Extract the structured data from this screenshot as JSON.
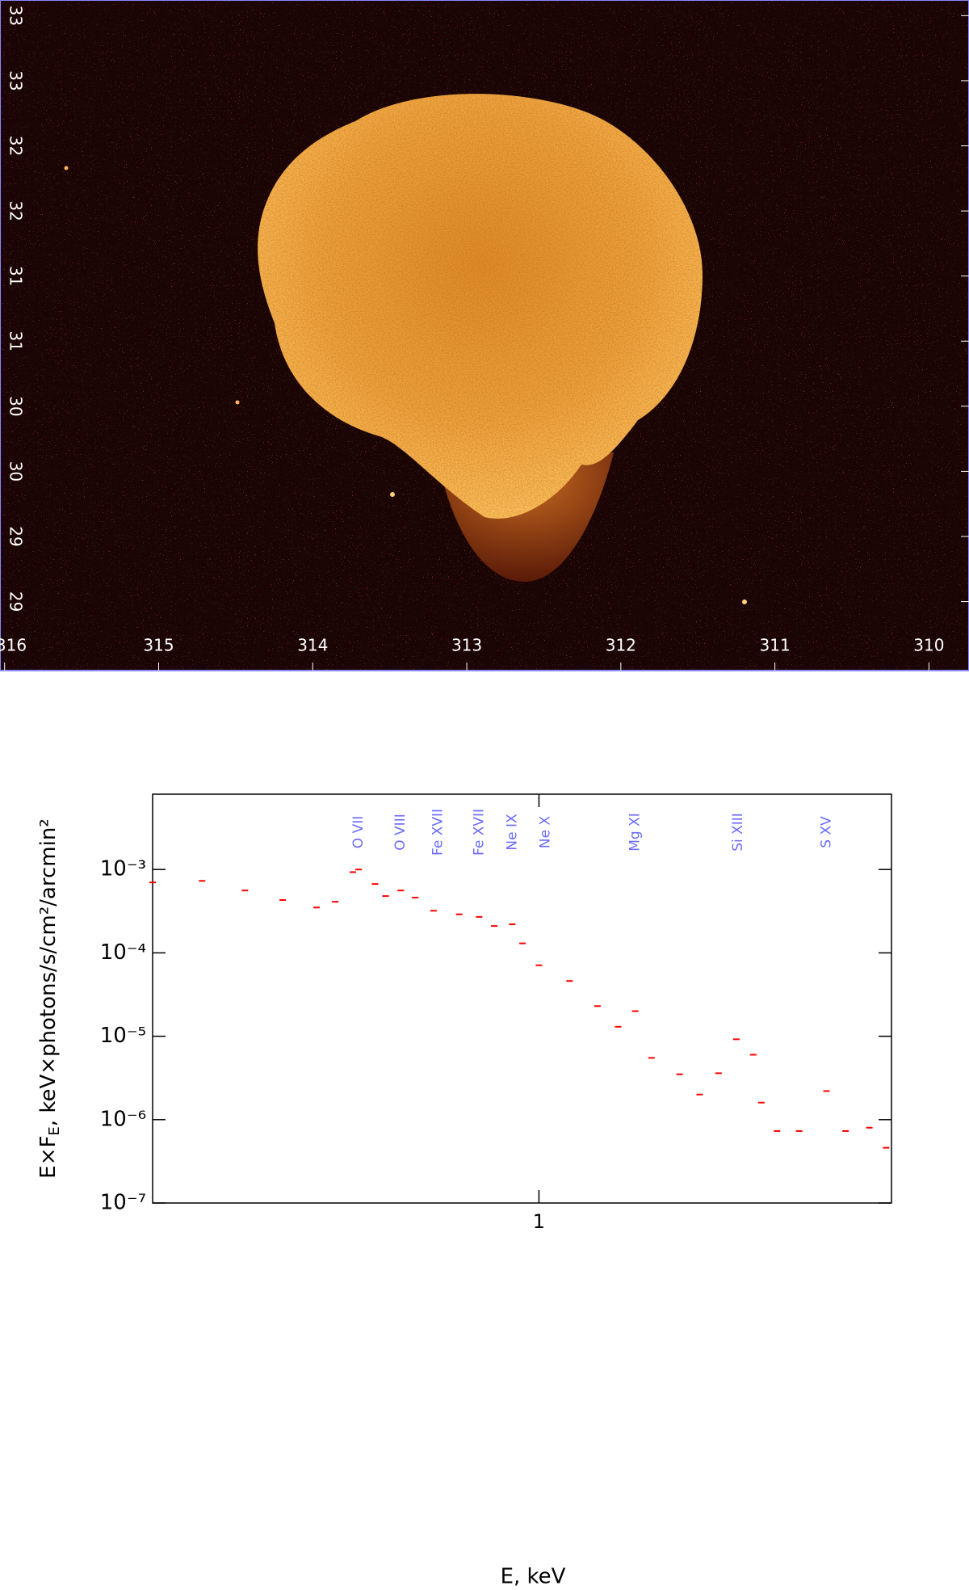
{
  "chart_data": [
    {
      "type": "image",
      "xlim": [
        316.03,
        309.74
      ],
      "xticks": [
        316,
        315,
        314,
        313,
        312,
        311,
        310
      ],
      "ylim": [
        33.62,
        28.47
      ],
      "yticks": [
        {
          "value": 33.5,
          "label": "33"
        },
        {
          "value": 33,
          "label": "33"
        },
        {
          "value": 32.5,
          "label": "32"
        },
        {
          "value": 32,
          "label": "32"
        },
        {
          "value": 31.5,
          "label": "31"
        },
        {
          "value": 31,
          "label": "31"
        },
        {
          "value": 30.5,
          "label": "30"
        },
        {
          "value": 30,
          "label": "30"
        },
        {
          "value": 29.5,
          "label": "29"
        },
        {
          "value": 29,
          "label": "29"
        }
      ]
    },
    {
      "type": "scatter",
      "log_x": true,
      "log_y": true,
      "xlabel": "E, keV",
      "ylabel": [
        "E×F",
        "E",
        ", keV×photons/s/cm²/arcmin²"
      ],
      "xlim": [
        0.3,
        3.0
      ],
      "ylim": [
        1e-07,
        0.008
      ],
      "xticks": [
        1
      ],
      "yticks": [
        {
          "value": 0.001,
          "label": "10⁻³"
        },
        {
          "value": 0.0001,
          "label": "10⁻⁴"
        },
        {
          "value": 1e-05,
          "label": "10⁻⁵"
        },
        {
          "value": 1e-06,
          "label": "10⁻⁶"
        },
        {
          "value": 1e-07,
          "label": "10⁻⁷"
        }
      ],
      "annotations": [
        {
          "text": "O VII",
          "x": 0.57
        },
        {
          "text": "O VIII",
          "x": 0.65
        },
        {
          "text": "Fe XVII",
          "x": 0.73
        },
        {
          "text": "Fe XVII",
          "x": 0.83
        },
        {
          "text": "Ne IX",
          "x": 0.92
        },
        {
          "text": "Ne X",
          "x": 1.02
        },
        {
          "text": "Mg XI",
          "x": 1.35
        },
        {
          "text": "Si XIII",
          "x": 1.86
        },
        {
          "text": "S XV",
          "x": 2.45
        }
      ],
      "series": [
        {
          "color": "#ff0000",
          "x": [
            0.3,
            0.35,
            0.4,
            0.45,
            0.5,
            0.53,
            0.56,
            0.57,
            0.6,
            0.62,
            0.65,
            0.68,
            0.72,
            0.78,
            0.83,
            0.87,
            0.92,
            0.95,
            1.0,
            1.1,
            1.2,
            1.28,
            1.35,
            1.42,
            1.55,
            1.65,
            1.75,
            1.85,
            1.95,
            2.0,
            2.1,
            2.25,
            2.45,
            2.6,
            2.8,
            2.95
          ],
          "values": [
            0.0007,
            0.00073,
            0.00056,
            0.00043,
            0.00035,
            0.00041,
            0.00093,
            0.001,
            0.00067,
            0.00048,
            0.00056,
            0.00046,
            0.00032,
            0.00029,
            0.00027,
            0.00021,
            0.00022,
            0.00013,
            7.1e-05,
            4.6e-05,
            2.3e-05,
            1.3e-05,
            2e-05,
            5.5e-06,
            3.5e-06,
            2e-06,
            3.6e-06,
            9.2e-06,
            6e-06,
            1.6e-06,
            7.3e-07,
            7.3e-07,
            2.2e-06,
            7.3e-07,
            8e-07,
            4.6e-07
          ]
        }
      ]
    }
  ]
}
